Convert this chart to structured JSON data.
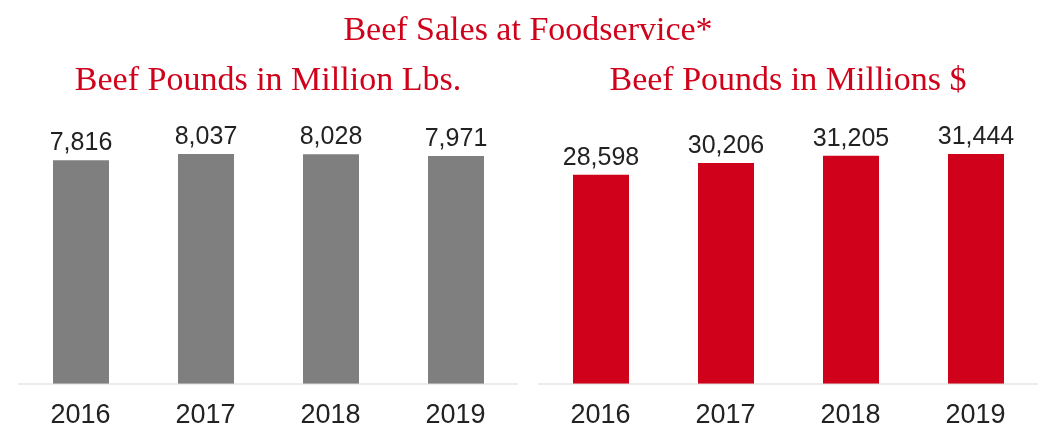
{
  "chart_data": [
    {
      "type": "bar",
      "title": "Beef Sales at Foodservice*",
      "subtitle": "Beef Pounds in Million Lbs.",
      "categories": [
        "2016",
        "2017",
        "2018",
        "2019"
      ],
      "values": [
        7816,
        8037,
        8028,
        7971
      ],
      "value_labels": [
        "7,816",
        "8,037",
        "8,028",
        "7,971"
      ],
      "color": "#7f7f7f"
    },
    {
      "type": "bar",
      "subtitle": "Beef Pounds in Millions $",
      "categories": [
        "2016",
        "2017",
        "2018",
        "2019"
      ],
      "values": [
        28598,
        30206,
        31205,
        31444
      ],
      "value_labels": [
        "28,598",
        "30,206",
        "31,205",
        "31,444"
      ],
      "color": "#d0021b"
    }
  ]
}
